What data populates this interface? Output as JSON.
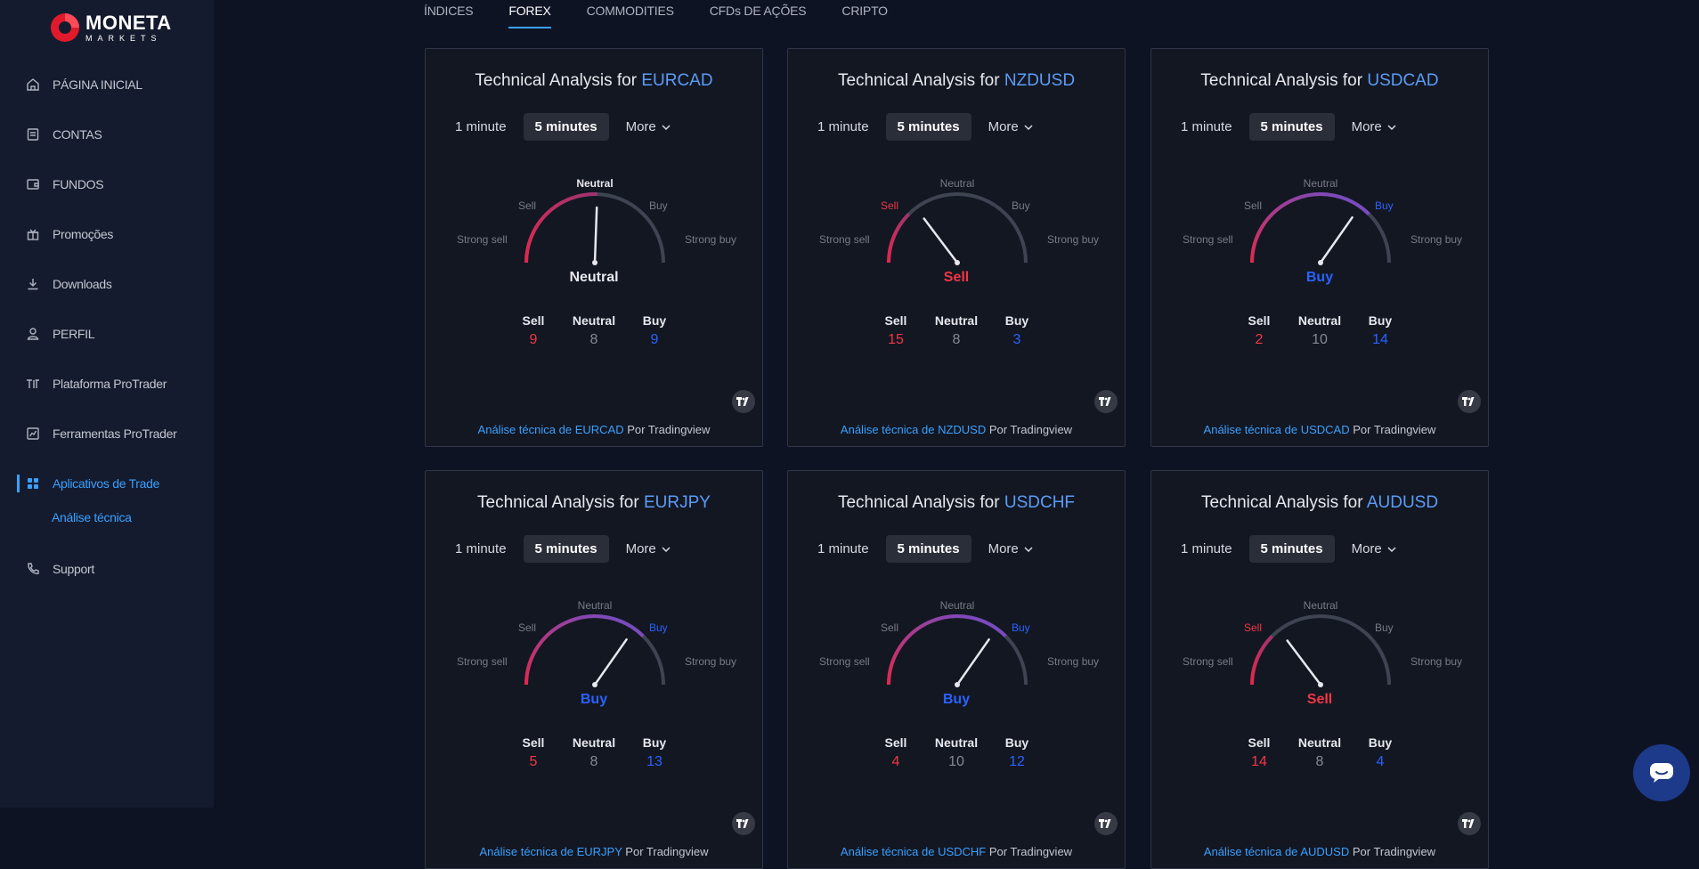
{
  "brand": {
    "name": "MONETA",
    "sub": "MARKETS",
    "color": "#e11a2b"
  },
  "sidebar": {
    "items": [
      {
        "label": "PÁGINA INICIAL",
        "icon": "home-icon"
      },
      {
        "label": "CONTAS",
        "icon": "document-icon"
      },
      {
        "label": "FUNDOS",
        "icon": "wallet-icon"
      },
      {
        "label": "Promoções",
        "icon": "gift-icon"
      },
      {
        "label": "Downloads",
        "icon": "download-icon"
      },
      {
        "label": "PERFIL",
        "icon": "user-icon"
      },
      {
        "label": "Plataforma ProTrader",
        "icon": "sliders-icon"
      },
      {
        "label": "Ferramentas ProTrader",
        "icon": "chart-icon"
      },
      {
        "label": "Aplicativos de Trade",
        "icon": "grid-icon",
        "active": true
      }
    ],
    "sub_item": "Análise técnica",
    "support": {
      "label": "Support",
      "icon": "phone-icon"
    }
  },
  "tabs": [
    {
      "label": "ÍNDICES"
    },
    {
      "label": "FOREX",
      "active": true
    },
    {
      "label": "COMMODITIES"
    },
    {
      "label": "CFDs DE AÇÕES"
    },
    {
      "label": "CRIPTO"
    }
  ],
  "widget_labels": {
    "title_prefix": "Technical Analysis for",
    "interval_1": "1 minute",
    "interval_2": "5 minutes",
    "more": "More",
    "gauge": {
      "strong_sell": "Strong sell",
      "sell": "Sell",
      "neutral": "Neutral",
      "buy": "Buy",
      "strong_buy": "Strong buy"
    },
    "count_sell": "Sell",
    "count_neutral": "Neutral",
    "count_buy": "Buy",
    "credit_link_prefix": "Análise técnica de",
    "credit_suffix": "Por Tradingview"
  },
  "widgets": [
    {
      "symbol": "EURCAD",
      "verdict": "Neutral",
      "sell": 9,
      "neutral": 8,
      "buy": 9,
      "needle_angle": 88
    },
    {
      "symbol": "NZDUSD",
      "verdict": "Sell",
      "sell": 15,
      "neutral": 8,
      "buy": 3,
      "needle_angle": 127
    },
    {
      "symbol": "USDCAD",
      "verdict": "Buy",
      "sell": 2,
      "neutral": 10,
      "buy": 14,
      "needle_angle": 55
    },
    {
      "symbol": "EURJPY",
      "verdict": "Buy",
      "sell": 5,
      "neutral": 8,
      "buy": 13,
      "needle_angle": 55
    },
    {
      "symbol": "USDCHF",
      "verdict": "Buy",
      "sell": 4,
      "neutral": 10,
      "buy": 12,
      "needle_angle": 55
    },
    {
      "symbol": "AUDUSD",
      "verdict": "Sell",
      "sell": 14,
      "neutral": 8,
      "buy": 4,
      "needle_angle": 127
    }
  ],
  "colors": {
    "sell": "#f23645",
    "buy": "#2962ff",
    "neutral": "#e6e8ee",
    "accent": "#3aa0ff"
  },
  "chat": {
    "icon": "chat-icon"
  }
}
